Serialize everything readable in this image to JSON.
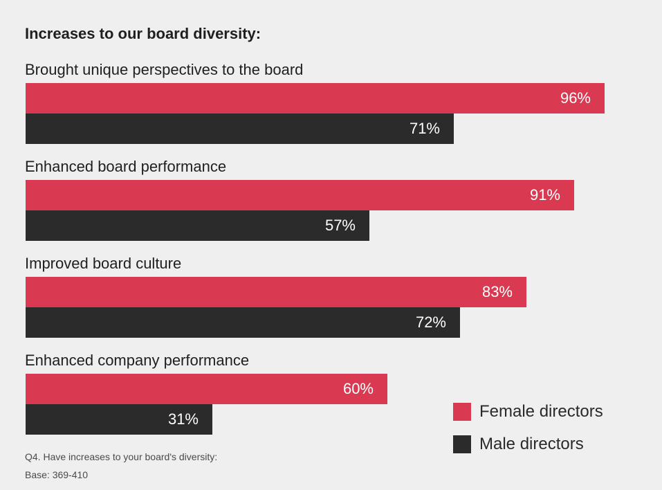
{
  "chart_data": {
    "type": "bar",
    "orientation": "horizontal",
    "title": "Increases to our board diversity:",
    "categories": [
      "Brought unique perspectives to the board",
      "Enhanced board performance",
      "Improved board culture",
      "Enhanced company performance"
    ],
    "series": [
      {
        "name": "Female directors",
        "values": [
          96,
          91,
          83,
          60
        ],
        "labels": [
          "96%",
          "91%",
          "83%",
          "60%"
        ],
        "color": "#d93a52"
      },
      {
        "name": "Male directors",
        "values": [
          71,
          57,
          72,
          31
        ],
        "labels": [
          "71%",
          "57%",
          "72%",
          "31%"
        ],
        "color": "#2b2b2b"
      }
    ],
    "xlim": [
      0,
      100
    ],
    "unit": "%",
    "grid": false,
    "legend_position": "bottom-right"
  },
  "footnotes": {
    "question": "Q4. Have increases to your board's diversity:",
    "base": "Base: 369-410"
  }
}
